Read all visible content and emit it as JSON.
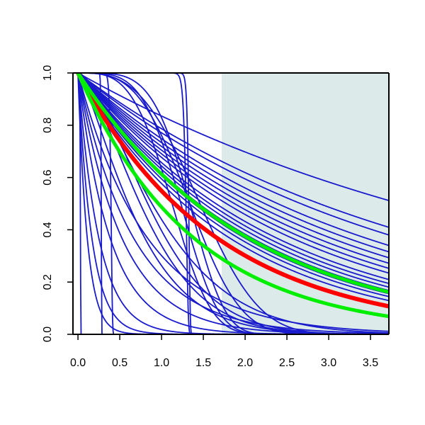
{
  "chart_data": {
    "type": "line",
    "title": "",
    "xlabel": "",
    "ylabel": "",
    "xlim": [
      -0.06,
      3.72
    ],
    "ylim": [
      0,
      1
    ],
    "x_ticks": [
      "0.0",
      "0.5",
      "1.0",
      "1.5",
      "2.0",
      "2.5",
      "3.0",
      "3.5"
    ],
    "y_ticks": [
      "0.0",
      "0.2",
      "0.4",
      "0.6",
      "0.8",
      "1.0"
    ],
    "shaded_region": {
      "x_from": 1.72,
      "x_to": 3.72,
      "color": "#dcebea"
    },
    "colors": {
      "blue": "#1a1acd",
      "red": "#ff0000",
      "green": "#00ee00",
      "axis": "#000000"
    },
    "series": [
      {
        "color_key": "blue",
        "kind": "exp",
        "rate": 0.18
      },
      {
        "color_key": "blue",
        "kind": "exp",
        "rate": 0.24
      },
      {
        "color_key": "blue",
        "kind": "exp",
        "rate": 0.26
      },
      {
        "color_key": "blue",
        "kind": "exp",
        "rate": 0.29
      },
      {
        "color_key": "blue",
        "kind": "exp",
        "rate": 0.31
      },
      {
        "color_key": "blue",
        "kind": "exp",
        "rate": 0.33
      },
      {
        "color_key": "blue",
        "kind": "exp",
        "rate": 0.35
      },
      {
        "color_key": "blue",
        "kind": "exp",
        "rate": 0.37
      },
      {
        "color_key": "blue",
        "kind": "exp",
        "rate": 0.39
      },
      {
        "color_key": "blue",
        "kind": "exp",
        "rate": 0.42
      },
      {
        "color_key": "blue",
        "kind": "exp",
        "rate": 0.44
      },
      {
        "color_key": "blue",
        "kind": "exp",
        "rate": 0.46
      },
      {
        "color_key": "blue",
        "kind": "exp",
        "rate": 0.48
      },
      {
        "color_key": "blue",
        "kind": "exp",
        "rate": 0.5
      },
      {
        "color_key": "blue",
        "kind": "exp",
        "rate": 0.52
      },
      {
        "color_key": "blue",
        "kind": "exp",
        "rate": 0.55
      },
      {
        "color_key": "blue",
        "kind": "weibull",
        "scale": 1.25,
        "shape": 3.5
      },
      {
        "color_key": "blue",
        "kind": "weibull",
        "scale": 1.35,
        "shape": 4.0
      },
      {
        "color_key": "blue",
        "kind": "weibull",
        "scale": 1.45,
        "shape": 4.5
      },
      {
        "color_key": "blue",
        "kind": "weibull",
        "scale": 1.5,
        "shape": 3.2
      },
      {
        "color_key": "blue",
        "kind": "weibull",
        "scale": 1.65,
        "shape": 3.0
      },
      {
        "color_key": "blue",
        "kind": "weibull",
        "scale": 1.3,
        "shape": 60
      },
      {
        "color_key": "blue",
        "kind": "weibull",
        "scale": 1.33,
        "shape": 90
      },
      {
        "color_key": "blue",
        "kind": "weibull",
        "scale": 0.28,
        "shape": 70
      },
      {
        "color_key": "blue",
        "kind": "weibull",
        "scale": 0.4,
        "shape": 30
      },
      {
        "color_key": "blue",
        "kind": "weibull",
        "scale": 0.03,
        "shape": 8
      },
      {
        "color_key": "blue",
        "kind": "exp",
        "rate": 1.2
      },
      {
        "color_key": "blue",
        "kind": "exp",
        "rate": 1.5
      },
      {
        "color_key": "blue",
        "kind": "exp",
        "rate": 1.9
      },
      {
        "color_key": "blue",
        "kind": "exp",
        "rate": 2.6
      },
      {
        "color_key": "blue",
        "kind": "exp",
        "rate": 4.0
      },
      {
        "color_key": "blue",
        "kind": "exp",
        "rate": 6.0
      },
      {
        "color_key": "blue",
        "kind": "exp",
        "rate": 9.0
      },
      {
        "color_key": "blue",
        "kind": "weibull",
        "scale": 0.8,
        "shape": 1.3
      },
      {
        "color_key": "blue",
        "kind": "weibull",
        "scale": 0.95,
        "shape": 1.5
      },
      {
        "color_key": "blue",
        "kind": "weibull",
        "scale": 1.05,
        "shape": 1.6
      },
      {
        "color_key": "blue",
        "kind": "weibull",
        "scale": 1.15,
        "shape": 1.4
      },
      {
        "color_key": "red",
        "kind": "exp",
        "rate": 0.6,
        "width": 6
      },
      {
        "color_key": "green",
        "kind": "exp",
        "rate": 0.49,
        "width": 5
      },
      {
        "color_key": "green",
        "kind": "exp",
        "rate": 0.72,
        "width": 5
      }
    ]
  }
}
